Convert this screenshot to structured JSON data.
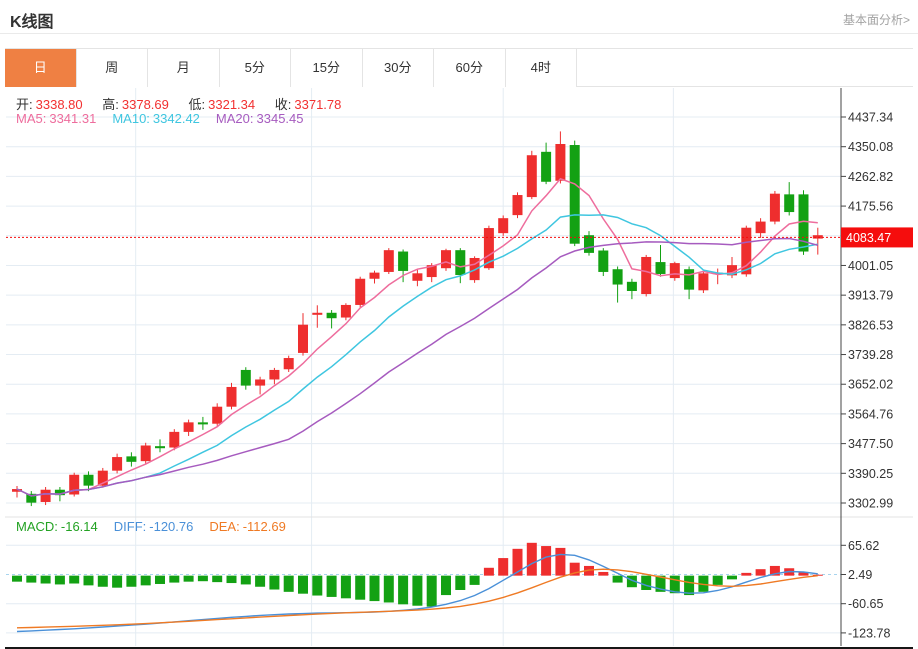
{
  "header": {
    "title": "K线图",
    "link_label": "基本面分析>"
  },
  "tabs": {
    "items": [
      "日",
      "周",
      "月",
      "5分",
      "15分",
      "30分",
      "60分",
      "4时"
    ],
    "active_index": 0
  },
  "ohlc_info": {
    "open_label": "开:",
    "open": "3338.80",
    "high_label": "高:",
    "high": "3378.69",
    "low_label": "低:",
    "low": "3321.34",
    "close_label": "收:",
    "close": "3371.78"
  },
  "ma_info": [
    {
      "label": "MA5:",
      "value": "3341.31",
      "color": "#ee6d9d"
    },
    {
      "label": "MA10:",
      "value": "3342.42",
      "color": "#3fc6e0"
    },
    {
      "label": "MA20:",
      "value": "3345.45",
      "color": "#a65bbf"
    }
  ],
  "macd_info": [
    {
      "label": "MACD:",
      "value": "-16.14",
      "color": "#23a223"
    },
    {
      "label": "DIFF:",
      "value": "-120.76",
      "color": "#4a90d8"
    },
    {
      "label": "DEA:",
      "value": "-112.69",
      "color": "#ef7a24"
    }
  ],
  "colors": {
    "up": "#ee2e2e",
    "down": "#13a113",
    "price_line": "#f50d0d",
    "price_label_bg": "#f50d0d",
    "price_label_text": "#ffffff",
    "ma5": "#ee6d9d",
    "ma10": "#3fc6e0",
    "ma20": "#a65bbf",
    "diff": "#4a90d8",
    "dea": "#ef7a24",
    "tab_active_bg": "#ef8043",
    "grid": "#e4ecf3",
    "zero_dash": "#a8d4ee",
    "axis": "#444444"
  },
  "chart_data": {
    "type": "candlestick",
    "title": "K线图",
    "main": {
      "ylim": [
        3302.99,
        4437.34
      ],
      "y_tick_step": 87.257,
      "y_tick_labels": [
        4437.34,
        4350.08,
        4262.82,
        4175.56,
        4001.05,
        3913.79,
        3826.53,
        3739.28,
        3652.02,
        3564.76,
        3477.5,
        3390.25,
        3302.99
      ],
      "current_price": 4083.47,
      "ma_windows": [
        5,
        10,
        20
      ],
      "candles": [
        [
          3336,
          3353,
          3319,
          3344
        ],
        [
          3330,
          3338,
          3294,
          3304
        ],
        [
          3306,
          3350,
          3297,
          3342
        ],
        [
          3342,
          3350,
          3308,
          3326
        ],
        [
          3328,
          3392,
          3322,
          3386
        ],
        [
          3386,
          3396,
          3338,
          3354
        ],
        [
          3354,
          3406,
          3348,
          3398
        ],
        [
          3398,
          3448,
          3390,
          3438
        ],
        [
          3440,
          3452,
          3410,
          3424
        ],
        [
          3426,
          3480,
          3418,
          3472
        ],
        [
          3470,
          3490,
          3452,
          3464
        ],
        [
          3466,
          3520,
          3458,
          3512
        ],
        [
          3512,
          3548,
          3500,
          3540
        ],
        [
          3540,
          3556,
          3518,
          3534
        ],
        [
          3536,
          3596,
          3530,
          3586
        ],
        [
          3586,
          3656,
          3578,
          3644
        ],
        [
          3694,
          3702,
          3636,
          3648
        ],
        [
          3648,
          3674,
          3622,
          3666
        ],
        [
          3666,
          3700,
          3652,
          3694
        ],
        [
          3696,
          3736,
          3688,
          3729
        ],
        [
          3744,
          3861,
          3736,
          3827
        ],
        [
          3856,
          3884,
          3818,
          3862
        ],
        [
          3862,
          3870,
          3816,
          3846
        ],
        [
          3848,
          3890,
          3840,
          3885
        ],
        [
          3885,
          3968,
          3878,
          3962
        ],
        [
          3962,
          3986,
          3948,
          3980
        ],
        [
          3982,
          4052,
          3976,
          4046
        ],
        [
          4042,
          4048,
          3952,
          3985
        ],
        [
          3956,
          3990,
          3940,
          3978
        ],
        [
          3967,
          4008,
          3952,
          4002
        ],
        [
          3993,
          4050,
          3985,
          4046
        ],
        [
          4046,
          4052,
          3949,
          3973
        ],
        [
          3958,
          4028,
          3950,
          4023
        ],
        [
          3993,
          4118,
          3988,
          4111
        ],
        [
          4096,
          4148,
          4088,
          4140
        ],
        [
          4149,
          4216,
          4140,
          4208
        ],
        [
          4202,
          4338,
          4196,
          4325
        ],
        [
          4335,
          4362,
          4240,
          4247
        ],
        [
          4250,
          4395,
          4242,
          4358
        ],
        [
          4355,
          4368,
          4058,
          4065
        ],
        [
          4090,
          4102,
          4030,
          4038
        ],
        [
          4045,
          4052,
          3970,
          3982
        ],
        [
          3990,
          3998,
          3892,
          3945
        ],
        [
          3953,
          3962,
          3902,
          3926
        ],
        [
          3917,
          4032,
          3910,
          4026
        ],
        [
          4011,
          4061,
          3968,
          3976
        ],
        [
          3964,
          4012,
          3956,
          4008
        ],
        [
          3990,
          3998,
          3902,
          3930
        ],
        [
          3928,
          3984,
          3920,
          3978
        ],
        [
          3976,
          3992,
          3946,
          3980
        ],
        [
          3972,
          4026,
          3964,
          4002
        ],
        [
          3975,
          4118,
          3968,
          4112
        ],
        [
          4096,
          4140,
          4082,
          4130
        ],
        [
          4130,
          4220,
          4122,
          4212
        ],
        [
          4210,
          4246,
          4148,
          4158
        ],
        [
          4210,
          4222,
          4032,
          4042
        ],
        [
          4080,
          4112,
          4033,
          4090
        ]
      ]
    },
    "macd": {
      "ylim": [
        -123.78,
        65.62
      ],
      "y_tick_labels": [
        65.62,
        2.49,
        -60.65,
        -123.78
      ],
      "zero_dash_line": 2.49,
      "hist": [
        -13,
        -15,
        -17,
        -19,
        -17,
        -21,
        -24,
        -26,
        -24,
        -21,
        -18,
        -15,
        -13,
        -12,
        -14,
        -16,
        -19,
        -24,
        -30,
        -35,
        -39,
        -43,
        -46,
        -49,
        -52,
        -55,
        -58,
        -62,
        -65,
        -67,
        -42,
        -31,
        -20,
        17,
        38,
        58,
        71,
        64,
        60,
        28,
        21,
        8,
        -15,
        -25,
        -31,
        -35,
        -38,
        -42,
        -35,
        -20,
        -8,
        6,
        14,
        21,
        16,
        8,
        2
      ],
      "diff": [
        -120.8,
        -119.5,
        -118,
        -116.5,
        -115,
        -113,
        -111,
        -109,
        -107,
        -105,
        -102.5,
        -100,
        -97.5,
        -95,
        -92.5,
        -90,
        -88,
        -86,
        -84.5,
        -83,
        -82,
        -81,
        -80.5,
        -80,
        -79.5,
        -78.5,
        -77,
        -75,
        -72,
        -68,
        -62,
        -54,
        -43,
        -28,
        -10,
        8,
        26,
        40,
        46,
        44,
        34,
        20,
        5,
        -10,
        -21,
        -29,
        -35,
        -38,
        -37,
        -32,
        -24,
        -14,
        -4,
        4,
        9,
        8,
        4
      ],
      "dea": [
        -112.7,
        -112,
        -111.2,
        -110.4,
        -109.5,
        -108.5,
        -107.4,
        -106.2,
        -105,
        -103.6,
        -102,
        -100.4,
        -98.6,
        -96.8,
        -95,
        -93.2,
        -91.4,
        -89.6,
        -87.9,
        -86.2,
        -84.6,
        -83.1,
        -81.7,
        -80.4,
        -79.2,
        -78.1,
        -77,
        -75.8,
        -74.4,
        -72.6,
        -70,
        -66.4,
        -61.6,
        -55.2,
        -47,
        -37.2,
        -26.2,
        -14.6,
        -3.4,
        6,
        12,
        14,
        12.5,
        8.5,
        3,
        -3,
        -9,
        -14.5,
        -19,
        -22,
        -23,
        -21.5,
        -18,
        -13,
        -8,
        -3.5,
        0
      ]
    },
    "month_grid_positions": [
      9.3,
      21.6,
      35.0,
      46.9
    ]
  }
}
